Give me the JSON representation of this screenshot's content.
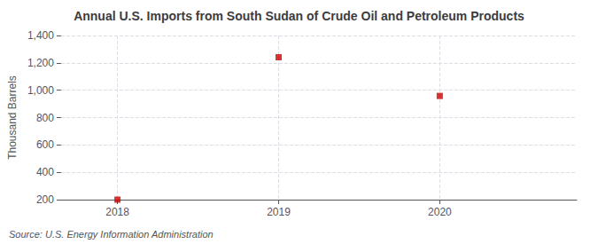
{
  "chart_data": {
    "type": "scatter",
    "title": "Annual U.S. Imports from South Sudan of Crude Oil and Petroleum Products",
    "ylabel": "Thousand Barrels",
    "source": "Source: U.S. Energy Information Administration",
    "x": [
      2018,
      2019,
      2020
    ],
    "values": [
      200,
      1241,
      958
    ],
    "color": "#cc0000",
    "marker": "square",
    "xlim": [
      2017.65,
      2020.85
    ],
    "xticks": [
      2018,
      2019,
      2020
    ],
    "ylim": [
      200,
      1400
    ],
    "yticks": [
      200,
      400,
      600,
      800,
      {
        "value": 1000,
        "label": "1,000"
      },
      {
        "value": 1200,
        "label": "1,200"
      },
      {
        "value": 1400,
        "label": "1,400"
      }
    ],
    "grid": true
  }
}
